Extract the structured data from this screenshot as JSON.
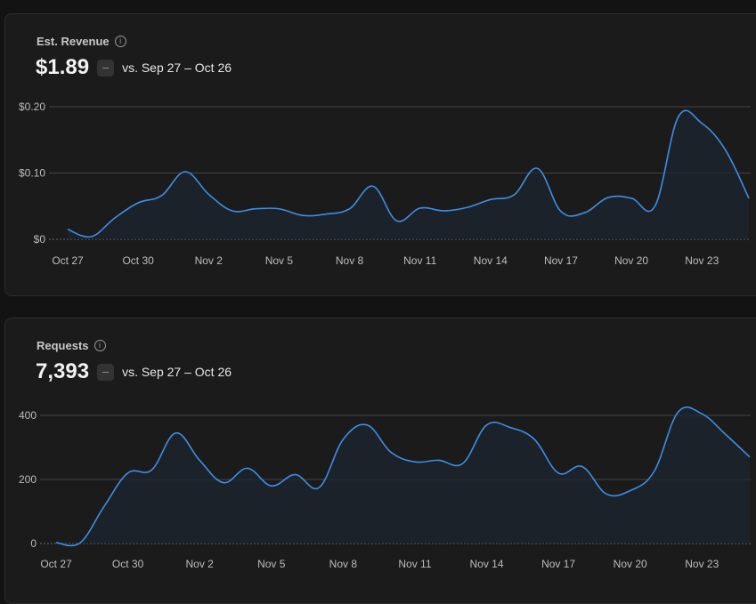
{
  "cards": [
    {
      "title": "Est. Revenue",
      "info_icon": "info-icon",
      "value": "$1.89",
      "change_badge": "neutral-dash",
      "comparison": "vs. Sep 27 – Oct 26"
    },
    {
      "title": "Requests",
      "info_icon": "info-icon",
      "value": "7,393",
      "change_badge": "neutral-dash",
      "comparison": "vs. Sep 27 – Oct 26"
    }
  ],
  "chart_data": [
    {
      "type": "area",
      "line_color": "#3b8fe8",
      "grid": true,
      "x": [
        "Oct 27",
        "Oct 28",
        "Oct 29",
        "Oct 30",
        "Oct 31",
        "Nov 1",
        "Nov 2",
        "Nov 3",
        "Nov 4",
        "Nov 5",
        "Nov 6",
        "Nov 7",
        "Nov 8",
        "Nov 9",
        "Nov 10",
        "Nov 11",
        "Nov 12",
        "Nov 13",
        "Nov 14",
        "Nov 15",
        "Nov 16",
        "Nov 17",
        "Nov 18",
        "Nov 19",
        "Nov 20",
        "Nov 21",
        "Nov 22",
        "Nov 23",
        "Nov 24",
        "Nov 25"
      ],
      "values": [
        0.015,
        0.004,
        0.032,
        0.055,
        0.066,
        0.102,
        0.068,
        0.043,
        0.046,
        0.046,
        0.036,
        0.038,
        0.046,
        0.08,
        0.028,
        0.047,
        0.043,
        0.048,
        0.06,
        0.067,
        0.107,
        0.042,
        0.04,
        0.063,
        0.062,
        0.05,
        0.185,
        0.175,
        0.135,
        0.062
      ],
      "xticks": [
        "Oct 27",
        "Oct 30",
        "Nov 2",
        "Nov 5",
        "Nov 8",
        "Nov 11",
        "Nov 14",
        "Nov 17",
        "Nov 20",
        "Nov 23"
      ],
      "yticks": [
        {
          "value": 0,
          "label": "$0"
        },
        {
          "value": 0.1,
          "label": "$0.10"
        },
        {
          "value": 0.2,
          "label": "$0.20"
        }
      ],
      "ylim": [
        0,
        0.2
      ]
    },
    {
      "type": "area",
      "line_color": "#3b8fe8",
      "grid": true,
      "x": [
        "Oct 27",
        "Oct 28",
        "Oct 29",
        "Oct 30",
        "Oct 31",
        "Nov 1",
        "Nov 2",
        "Nov 3",
        "Nov 4",
        "Nov 5",
        "Nov 6",
        "Nov 7",
        "Nov 8",
        "Nov 9",
        "Nov 10",
        "Nov 11",
        "Nov 12",
        "Nov 13",
        "Nov 14",
        "Nov 15",
        "Nov 16",
        "Nov 17",
        "Nov 18",
        "Nov 19",
        "Nov 20",
        "Nov 21",
        "Nov 22",
        "Nov 23",
        "Nov 24",
        "Nov 25"
      ],
      "values": [
        3,
        2,
        115,
        220,
        230,
        345,
        260,
        190,
        235,
        180,
        215,
        175,
        325,
        370,
        285,
        255,
        260,
        250,
        370,
        362,
        325,
        220,
        240,
        155,
        165,
        225,
        410,
        405,
        340,
        270
      ],
      "xticks": [
        "Oct 27",
        "Oct 30",
        "Nov 2",
        "Nov 5",
        "Nov 8",
        "Nov 11",
        "Nov 14",
        "Nov 17",
        "Nov 20",
        "Nov 23"
      ],
      "yticks": [
        {
          "value": 0,
          "label": "0"
        },
        {
          "value": 200,
          "label": "200"
        },
        {
          "value": 400,
          "label": "400"
        }
      ],
      "ylim": [
        0,
        400
      ]
    }
  ]
}
